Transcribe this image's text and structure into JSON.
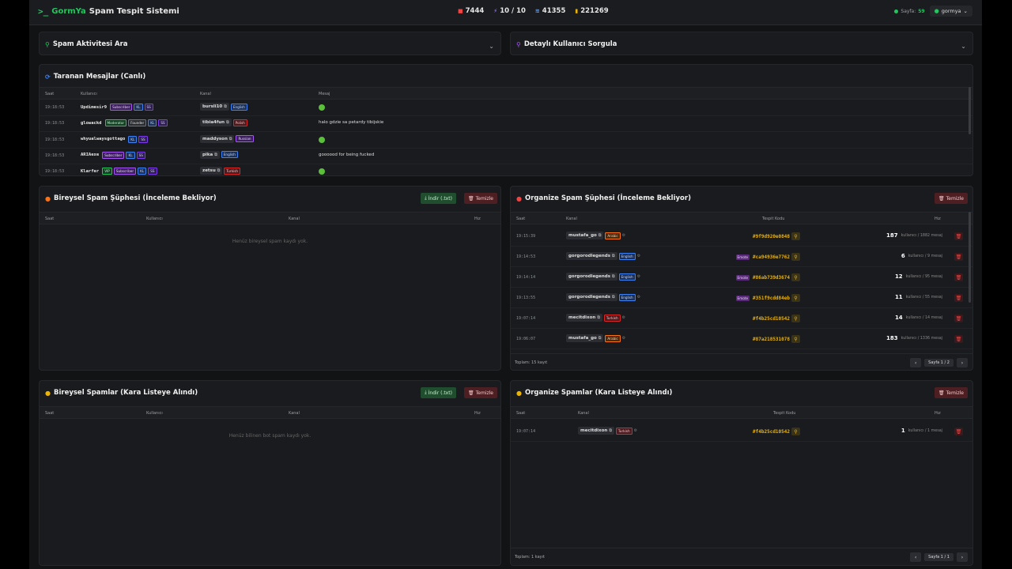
{
  "header": {
    "brand_a": "GormYa",
    "brand_b": "Spam Tespit Sistemi",
    "stats": [
      "7444",
      "10 / 10",
      "41355",
      "221269"
    ],
    "online_label": "Sayfa:",
    "online_count": "59",
    "user": "gormya"
  },
  "colors": {
    "accent": "#22c55e",
    "danger": "#ef4444",
    "code": "#eab308"
  },
  "search": {
    "title": "Spam Aktivitesi Ara"
  },
  "lookup": {
    "title": "Detaylı Kullanıcı Sorgula"
  },
  "live": {
    "title": "Taranan Mesajlar (Canlı)",
    "cols": [
      "Saat",
      "Kullanıcı",
      "Kanal",
      "Mesaj"
    ],
    "rows": [
      {
        "time": "19:18:53",
        "user": "Updimesir9",
        "badges": [
          [
            "Subscriber",
            "p"
          ],
          [
            "KL",
            "b"
          ],
          [
            "SS",
            "pp"
          ]
        ],
        "channel": "bursli10",
        "lang": [
          "English",
          "b"
        ],
        "msg": "",
        "emote": true
      },
      {
        "time": "19:18:53",
        "user": "glowackd",
        "badges": [
          [
            "Moderator",
            "g"
          ],
          [
            "Founder",
            "gr"
          ],
          [
            "KL",
            "b"
          ],
          [
            "SS",
            "pp"
          ]
        ],
        "channel": "tibia4fun",
        "lang": [
          "Polish",
          "r"
        ],
        "msg": "halo gdzie sa petardy tibijskie",
        "emote": false
      },
      {
        "time": "19:18:53",
        "user": "whyualwaysgottago",
        "badges": [
          [
            "KL",
            "b"
          ],
          [
            "SS",
            "pp"
          ]
        ],
        "channel": "maddyson",
        "lang": [
          "Russian",
          "p"
        ],
        "msg": "",
        "emote": true
      },
      {
        "time": "19:18:53",
        "user": "ARIAexe",
        "badges": [
          [
            "Subscriber",
            "p"
          ],
          [
            "KL",
            "b"
          ],
          [
            "SS",
            "pp"
          ]
        ],
        "channel": "pika",
        "lang": [
          "English",
          "b"
        ],
        "msg": "goooood for being fucked",
        "emote": false
      },
      {
        "time": "19:18:53",
        "user": "Klarfer",
        "badges": [
          [
            "VIP",
            "g"
          ],
          [
            "Subscriber",
            "p"
          ],
          [
            "KL",
            "b"
          ],
          [
            "SS",
            "pp"
          ]
        ],
        "channel": "zetsu",
        "lang": [
          "Turkish",
          "r"
        ],
        "msg": "",
        "emote": true
      }
    ]
  },
  "indiv_pending": {
    "title": "Bireysel Spam Şüphesi (İnceleme Bekliyor)",
    "download": "İndir (.txt)",
    "clear": "Temizle",
    "cols": [
      "Saat",
      "Kullanıcı",
      "Kanal",
      "Hız"
    ],
    "empty": "Henüz bireysel spam kaydı yok."
  },
  "org_pending": {
    "title": "Organize Spam Şüphesi (İnceleme Bekliyor)",
    "clear": "Temizle",
    "cols": [
      "Saat",
      "Kanal",
      "Tespit Kodu",
      "Hız"
    ],
    "rows": [
      {
        "time": "19:15:39",
        "channel": "mustafa_go",
        "lang": [
          "Arabic",
          "o"
        ],
        "emote": "",
        "code": "#9f9d920e0848",
        "count": "187",
        "sub": "kullanıcı / 1882 mesaj"
      },
      {
        "time": "19:14:53",
        "channel": "gorgorodlegends",
        "lang": [
          "English",
          "b"
        ],
        "emote": "Emote",
        "code": "#ca94936e7762",
        "count": "6",
        "sub": "kullanıcı / 9 mesaj"
      },
      {
        "time": "19:14:14",
        "channel": "gorgorodlegends",
        "lang": [
          "English",
          "b"
        ],
        "emote": "Emote",
        "code": "#86ab739d3674",
        "count": "12",
        "sub": "kullanıcı / 95 mesaj"
      },
      {
        "time": "19:13:55",
        "channel": "gorgorodlegends",
        "lang": [
          "English",
          "b"
        ],
        "emote": "Emote",
        "code": "#351f9cdd84eb",
        "count": "11",
        "sub": "kullanıcı / 55 mesaj"
      },
      {
        "time": "19:07:14",
        "channel": "mecitdixon",
        "lang": [
          "Turkish",
          "r"
        ],
        "emote": "",
        "code": "#f4b25cd10542",
        "count": "14",
        "sub": "kullanıcı / 14 mesaj"
      },
      {
        "time": "19:06:07",
        "channel": "mustafa_go",
        "lang": [
          "Arabic",
          "o"
        ],
        "emote": "",
        "code": "#87a218531078",
        "count": "183",
        "sub": "kullanıcı / 1336 mesaj"
      }
    ],
    "total": "Toplam: 15 kayıt",
    "page": "Sayfa 1 / 2"
  },
  "indiv_black": {
    "title": "Bireysel Spamlar (Kara Listeye Alındı)",
    "download": "İndir (.txt)",
    "clear": "Temizle",
    "cols": [
      "Saat",
      "Kullanıcı",
      "Kanal",
      "Hız"
    ],
    "empty": "Henüz bilinen bot spam kaydı yok."
  },
  "org_black": {
    "title": "Organize Spamlar (Kara Listeye Alındı)",
    "clear": "Temizle",
    "cols": [
      "Saat",
      "Kanal",
      "Tespit Kodu",
      "Hız"
    ],
    "rows": [
      {
        "time": "19:07:14",
        "channel": "mecitdixon",
        "lang": [
          "Turkish",
          "r"
        ],
        "emote": "",
        "code": "#f4b25cd10542",
        "count": "1",
        "sub": "kullanıcı / 1 mesaj"
      }
    ],
    "total": "Toplam: 1 kayıt",
    "page": "Sayfa 1 / 1"
  }
}
